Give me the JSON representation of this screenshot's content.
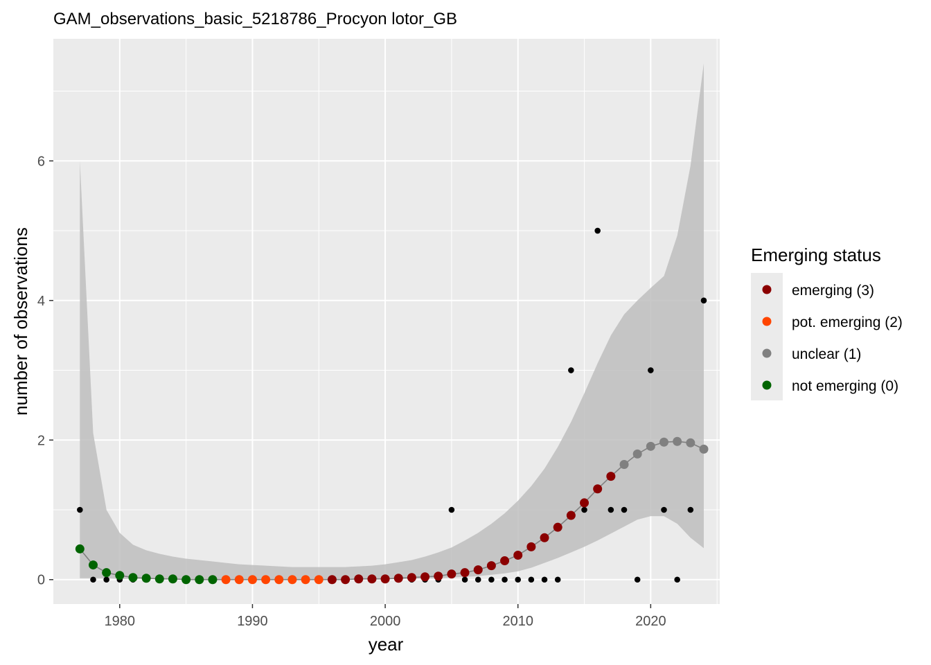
{
  "chart_data": {
    "type": "scatter",
    "title": "GAM_observations_basic_5218786_Procyon lotor_GB",
    "xlabel": "year",
    "ylabel": "number of observations",
    "xlim": [
      1975,
      2025.2
    ],
    "ylim": [
      -0.35,
      7.75
    ],
    "x_ticks": [
      1980,
      1990,
      2000,
      2010,
      2020
    ],
    "x_tick_labels": [
      "1980",
      "1990",
      "2000",
      "2010",
      "2020"
    ],
    "y_ticks": [
      0,
      2,
      4,
      6
    ],
    "y_tick_labels": [
      "0",
      "2",
      "4",
      "6"
    ],
    "grid": true,
    "legend": {
      "title": "Emerging status",
      "position": "right",
      "entries": [
        {
          "label": "emerging (3)",
          "color": "#8b0000"
        },
        {
          "label": "pot. emerging (2)",
          "color": "#ff4500"
        },
        {
          "label": "unclear (1)",
          "color": "#808080"
        },
        {
          "label": "not emerging (0)",
          "color": "#006400"
        }
      ]
    },
    "colors": {
      "panel": "#ebebeb",
      "grid": "#ffffff",
      "ribbon": "#bebebe",
      "fit_line": "#808080",
      "observed": "#000000"
    },
    "observed": {
      "x": [
        1977,
        1978,
        1979,
        1980,
        1981,
        1982,
        1983,
        1984,
        1985,
        1986,
        1987,
        1988,
        1989,
        1990,
        1991,
        1992,
        1993,
        1994,
        1995,
        1996,
        1997,
        1998,
        1999,
        2000,
        2001,
        2002,
        2003,
        2004,
        2005,
        2006,
        2007,
        2008,
        2009,
        2010,
        2011,
        2012,
        2013,
        2014,
        2015,
        2016,
        2017,
        2018,
        2019,
        2020,
        2021,
        2022,
        2023,
        2024
      ],
      "y": [
        1,
        0,
        0,
        0,
        0,
        0,
        0,
        0,
        0,
        0,
        0,
        0,
        0,
        0,
        0,
        0,
        0,
        0,
        0,
        0,
        0,
        0,
        0,
        0,
        0,
        0,
        0,
        0,
        1,
        0,
        0,
        0,
        0,
        0,
        0,
        0,
        0,
        3,
        1,
        5,
        1,
        1,
        0,
        3,
        1,
        0,
        1,
        4
      ]
    },
    "fit": {
      "x": [
        1977,
        1978,
        1979,
        1980,
        1981,
        1982,
        1983,
        1984,
        1985,
        1986,
        1987,
        1988,
        1989,
        1990,
        1991,
        1992,
        1993,
        1994,
        1995,
        1996,
        1997,
        1998,
        1999,
        2000,
        2001,
        2002,
        2003,
        2004,
        2005,
        2006,
        2007,
        2008,
        2009,
        2010,
        2011,
        2012,
        2013,
        2014,
        2015,
        2016,
        2017,
        2018,
        2019,
        2020,
        2021,
        2022,
        2023,
        2024
      ],
      "y": [
        0.44,
        0.21,
        0.1,
        0.06,
        0.03,
        0.02,
        0.01,
        0.01,
        0.0,
        0.0,
        0.0,
        0.0,
        0.0,
        0.0,
        0.0,
        0.0,
        0.0,
        0.0,
        0.0,
        0.0,
        0.0,
        0.01,
        0.01,
        0.01,
        0.02,
        0.03,
        0.04,
        0.05,
        0.08,
        0.1,
        0.14,
        0.2,
        0.27,
        0.35,
        0.47,
        0.6,
        0.75,
        0.92,
        1.1,
        1.3,
        1.48,
        1.65,
        1.8,
        1.91,
        1.97,
        1.98,
        1.96,
        1.87
      ],
      "status": [
        0,
        0,
        0,
        0,
        0,
        0,
        0,
        0,
        0,
        0,
        0,
        2,
        2,
        2,
        2,
        2,
        2,
        2,
        2,
        3,
        3,
        3,
        3,
        3,
        3,
        3,
        3,
        3,
        3,
        3,
        3,
        3,
        3,
        3,
        3,
        3,
        3,
        3,
        3,
        3,
        3,
        1,
        1,
        1,
        1,
        1,
        1,
        1
      ],
      "ci_lower": [
        0.02,
        0.02,
        0.02,
        0.01,
        0.01,
        0.01,
        0.01,
        0.01,
        0.0,
        0.0,
        0.0,
        0.0,
        0.0,
        0.0,
        0.0,
        0.0,
        0.0,
        0.0,
        0.0,
        0.0,
        0.0,
        0.0,
        0.01,
        0.01,
        0.01,
        0.01,
        0.02,
        0.02,
        0.03,
        0.04,
        0.05,
        0.07,
        0.09,
        0.12,
        0.17,
        0.24,
        0.31,
        0.39,
        0.47,
        0.56,
        0.66,
        0.76,
        0.86,
        0.91,
        0.91,
        0.8,
        0.6,
        0.45
      ],
      "ci_upper": [
        6.0,
        2.1,
        1.0,
        0.67,
        0.5,
        0.42,
        0.37,
        0.33,
        0.3,
        0.28,
        0.26,
        0.24,
        0.22,
        0.21,
        0.2,
        0.19,
        0.18,
        0.18,
        0.18,
        0.18,
        0.18,
        0.19,
        0.2,
        0.22,
        0.25,
        0.28,
        0.33,
        0.39,
        0.46,
        0.56,
        0.67,
        0.8,
        0.95,
        1.13,
        1.34,
        1.59,
        1.9,
        2.26,
        2.67,
        3.1,
        3.5,
        3.8,
        4.0,
        4.18,
        4.35,
        4.93,
        5.93,
        7.4
      ]
    }
  }
}
